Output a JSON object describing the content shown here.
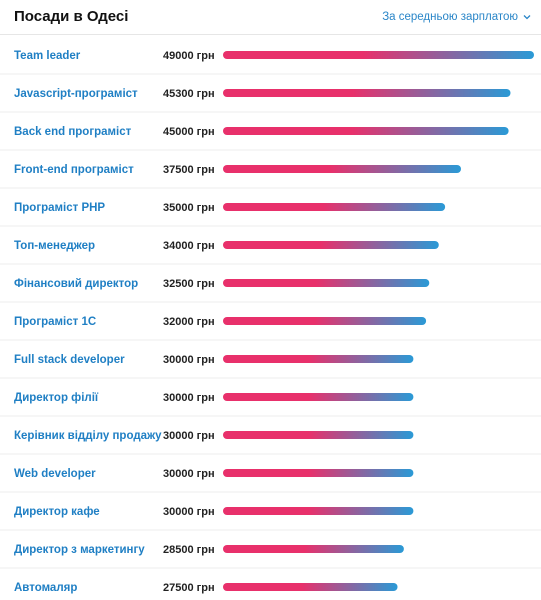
{
  "header": {
    "title": "Посади в Одесі",
    "sort_label": "За середньою зарплатою"
  },
  "colors": {
    "bar_start": "#e8306b",
    "bar_end": "#2a9ad6",
    "label": "#1f7fc4"
  },
  "chart_data": {
    "type": "bar",
    "orientation": "horizontal",
    "categories": [
      "Team leader",
      "Javascript-програміст",
      "Back end програміст",
      "Front-end програміст",
      "Програміст PHP",
      "Топ-менеджер",
      "Фінансовий директор",
      "Програміст 1С",
      "Full stack developer",
      "Директор філії",
      "Керівник відділу продажу",
      "Web developer",
      "Директор кафе",
      "Директор з маркетингу",
      "Автомаляр"
    ],
    "values": [
      49000,
      45300,
      45000,
      37500,
      35000,
      34000,
      32500,
      32000,
      30000,
      30000,
      30000,
      30000,
      30000,
      28500,
      27500
    ],
    "value_labels": [
      "49000 грн",
      "45300 грн",
      "45000 грн",
      "37500 грн",
      "35000 грн",
      "34000 грн",
      "32500 грн",
      "32000 грн",
      "30000 грн",
      "30000 грн",
      "30000 грн",
      "30000 грн",
      "30000 грн",
      "28500 грн",
      "27500 грн"
    ],
    "title": "",
    "xlabel": "",
    "ylabel": "",
    "xlim": [
      0,
      49000
    ],
    "grid": false,
    "legend": "none"
  }
}
